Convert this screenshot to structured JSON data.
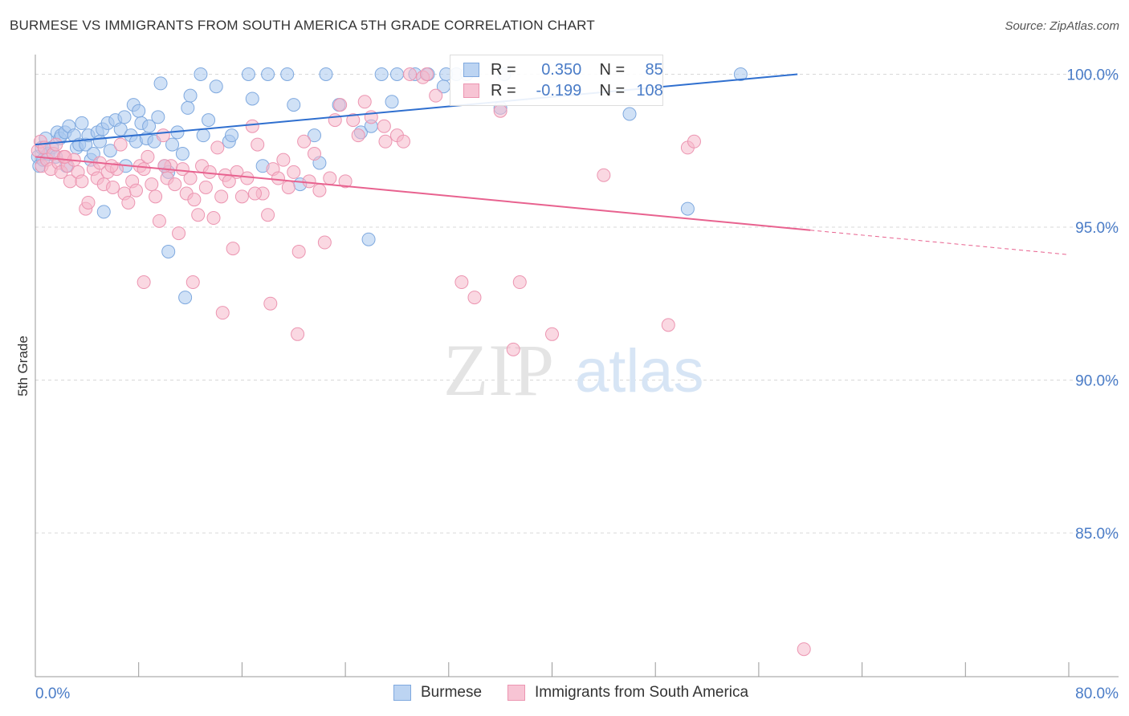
{
  "title": "BURMESE VS IMMIGRANTS FROM SOUTH AMERICA 5TH GRADE CORRELATION CHART",
  "source": "Source: ZipAtlas.com",
  "watermark": {
    "zip": "ZIP",
    "atlas": "atlas"
  },
  "legend": {
    "rows": [
      {
        "r_label": "R =",
        "r_value": "0.350",
        "n_label": "N =",
        "n_value": "85"
      },
      {
        "r_label": "R =",
        "r_value": "-0.199",
        "n_label": "N =",
        "n_value": "108"
      }
    ]
  },
  "bottom_legend": {
    "series1": "Burmese",
    "series2": "Immigrants from South America"
  },
  "colors": {
    "blue_fill": "#a9c8ef",
    "blue_stroke": "#7fa9df",
    "blue_line": "#2f6fcf",
    "pink_fill": "#f5b8cb",
    "pink_stroke": "#ec95b1",
    "pink_line": "#e8628f",
    "axis_text": "#4a7cc7",
    "grid": "#d8d8d8"
  },
  "chart_data": {
    "type": "scatter",
    "title": "BURMESE VS IMMIGRANTS FROM SOUTH AMERICA 5TH GRADE CORRELATION CHART",
    "xlabel": "",
    "ylabel": "5th Grade",
    "xlim": [
      0,
      80
    ],
    "ylim": [
      80.3,
      100.8
    ],
    "x_tick_labels": [
      "0.0%",
      "80.0%"
    ],
    "y_ticks": [
      85,
      90,
      95,
      100
    ],
    "y_tick_labels": [
      "85.0%",
      "90.0%",
      "95.0%",
      "100.0%"
    ],
    "grid": true,
    "legend_position": "top-center",
    "series": [
      {
        "name": "Burmese",
        "r": 0.35,
        "n": 85,
        "trend": {
          "x0": 0,
          "y0": 97.7,
          "x1": 59.0,
          "y1": 100.0,
          "dashed_to": 59.0
        },
        "points": [
          [
            0.2,
            97.3
          ],
          [
            0.3,
            97.0
          ],
          [
            0.5,
            97.6
          ],
          [
            0.6,
            97.2
          ],
          [
            0.8,
            97.9
          ],
          [
            1.0,
            97.4
          ],
          [
            1.3,
            97.6
          ],
          [
            1.6,
            97.3
          ],
          [
            1.7,
            98.1
          ],
          [
            1.9,
            97.9
          ],
          [
            2.0,
            98.0
          ],
          [
            2.3,
            98.1
          ],
          [
            2.6,
            98.3
          ],
          [
            3.0,
            98.0
          ],
          [
            3.2,
            97.6
          ],
          [
            3.4,
            97.7
          ],
          [
            3.6,
            98.4
          ],
          [
            3.9,
            97.7
          ],
          [
            4.1,
            98.0
          ],
          [
            4.3,
            97.2
          ],
          [
            4.5,
            97.4
          ],
          [
            4.8,
            98.1
          ],
          [
            5.0,
            97.8
          ],
          [
            5.2,
            98.2
          ],
          [
            5.6,
            98.4
          ],
          [
            5.8,
            97.5
          ],
          [
            6.2,
            98.5
          ],
          [
            6.6,
            98.2
          ],
          [
            6.9,
            98.6
          ],
          [
            7.0,
            97.0
          ],
          [
            7.4,
            98.0
          ],
          [
            7.6,
            99.0
          ],
          [
            7.8,
            97.8
          ],
          [
            8.0,
            98.8
          ],
          [
            8.2,
            98.4
          ],
          [
            8.6,
            97.9
          ],
          [
            8.8,
            98.3
          ],
          [
            9.2,
            97.8
          ],
          [
            9.5,
            98.6
          ],
          [
            9.7,
            99.7
          ],
          [
            10.0,
            97.0
          ],
          [
            10.3,
            96.8
          ],
          [
            10.6,
            97.7
          ],
          [
            11.0,
            98.1
          ],
          [
            11.4,
            97.4
          ],
          [
            11.8,
            98.9
          ],
          [
            12.0,
            99.3
          ],
          [
            12.8,
            100.0
          ],
          [
            13.0,
            98.0
          ],
          [
            13.4,
            98.5
          ],
          [
            14.0,
            99.6
          ],
          [
            15.0,
            97.8
          ],
          [
            15.2,
            98.0
          ],
          [
            16.5,
            100.0
          ],
          [
            16.8,
            99.2
          ],
          [
            17.6,
            97.0
          ],
          [
            18.0,
            100.0
          ],
          [
            19.5,
            100.0
          ],
          [
            20.0,
            99.0
          ],
          [
            20.5,
            96.4
          ],
          [
            21.6,
            98.0
          ],
          [
            22.0,
            97.1
          ],
          [
            22.5,
            100.0
          ],
          [
            23.5,
            99.0
          ],
          [
            25.2,
            98.1
          ],
          [
            26.0,
            98.3
          ],
          [
            26.8,
            100.0
          ],
          [
            27.6,
            99.1
          ],
          [
            28.0,
            100.0
          ],
          [
            29.4,
            100.0
          ],
          [
            30.4,
            100.0
          ],
          [
            31.6,
            99.6
          ],
          [
            31.8,
            100.0
          ],
          [
            32.6,
            100.0
          ],
          [
            33.4,
            100.0
          ],
          [
            36.0,
            98.9
          ],
          [
            36.3,
            100.0
          ],
          [
            46.0,
            98.7
          ],
          [
            50.5,
            95.6
          ],
          [
            54.6,
            100.0
          ],
          [
            5.3,
            95.5
          ],
          [
            10.3,
            94.2
          ],
          [
            11.6,
            92.7
          ],
          [
            25.8,
            94.6
          ],
          [
            2.4,
            97.0
          ]
        ]
      },
      {
        "name": "Immigrants from South America",
        "r": -0.199,
        "n": 108,
        "trend": {
          "x0": 0,
          "y0": 97.3,
          "x1": 60.0,
          "y1": 94.9,
          "dashed_to": 80.0
        },
        "points": [
          [
            0.2,
            97.5
          ],
          [
            0.4,
            97.8
          ],
          [
            0.5,
            97.0
          ],
          [
            0.7,
            97.6
          ],
          [
            0.9,
            97.2
          ],
          [
            1.2,
            96.9
          ],
          [
            1.4,
            97.4
          ],
          [
            1.6,
            97.7
          ],
          [
            1.8,
            97.1
          ],
          [
            2.0,
            96.8
          ],
          [
            2.2,
            97.3
          ],
          [
            2.5,
            97.0
          ],
          [
            2.7,
            96.5
          ],
          [
            3.0,
            97.2
          ],
          [
            3.3,
            96.8
          ],
          [
            3.6,
            96.5
          ],
          [
            3.9,
            95.6
          ],
          [
            4.1,
            95.8
          ],
          [
            4.5,
            96.9
          ],
          [
            4.8,
            96.6
          ],
          [
            5.0,
            97.1
          ],
          [
            5.3,
            96.4
          ],
          [
            5.6,
            96.8
          ],
          [
            6.0,
            96.3
          ],
          [
            6.3,
            96.9
          ],
          [
            6.6,
            97.7
          ],
          [
            6.9,
            96.1
          ],
          [
            7.2,
            95.8
          ],
          [
            7.5,
            96.5
          ],
          [
            7.8,
            96.2
          ],
          [
            8.1,
            97.0
          ],
          [
            8.4,
            96.9
          ],
          [
            8.7,
            97.3
          ],
          [
            9.0,
            96.4
          ],
          [
            9.3,
            96.0
          ],
          [
            9.6,
            95.2
          ],
          [
            9.9,
            98.0
          ],
          [
            10.2,
            96.6
          ],
          [
            10.5,
            97.0
          ],
          [
            10.8,
            96.4
          ],
          [
            11.1,
            94.8
          ],
          [
            11.4,
            96.9
          ],
          [
            11.7,
            96.1
          ],
          [
            12.0,
            96.6
          ],
          [
            12.3,
            95.9
          ],
          [
            12.6,
            95.4
          ],
          [
            12.9,
            97.0
          ],
          [
            13.2,
            96.3
          ],
          [
            13.5,
            96.8
          ],
          [
            13.8,
            95.3
          ],
          [
            14.1,
            97.6
          ],
          [
            14.4,
            96.0
          ],
          [
            14.7,
            96.7
          ],
          [
            15.0,
            96.5
          ],
          [
            15.3,
            94.3
          ],
          [
            15.6,
            96.8
          ],
          [
            16.0,
            96.0
          ],
          [
            16.4,
            96.6
          ],
          [
            16.8,
            98.3
          ],
          [
            17.2,
            97.7
          ],
          [
            17.6,
            96.1
          ],
          [
            18.0,
            95.4
          ],
          [
            18.4,
            96.9
          ],
          [
            18.8,
            96.6
          ],
          [
            19.2,
            97.2
          ],
          [
            19.6,
            96.3
          ],
          [
            20.0,
            96.8
          ],
          [
            20.4,
            94.2
          ],
          [
            20.8,
            97.8
          ],
          [
            21.2,
            96.5
          ],
          [
            21.6,
            97.4
          ],
          [
            22.0,
            96.2
          ],
          [
            22.4,
            94.5
          ],
          [
            22.8,
            96.6
          ],
          [
            23.2,
            98.5
          ],
          [
            23.6,
            99.0
          ],
          [
            24.0,
            96.5
          ],
          [
            24.6,
            98.5
          ],
          [
            25.0,
            98.0
          ],
          [
            25.5,
            99.1
          ],
          [
            26.0,
            98.6
          ],
          [
            27.0,
            98.3
          ],
          [
            28.0,
            98.0
          ],
          [
            28.5,
            97.8
          ],
          [
            29.0,
            100.0
          ],
          [
            30.0,
            99.9
          ],
          [
            31.0,
            99.3
          ],
          [
            33.0,
            93.2
          ],
          [
            34.0,
            92.7
          ],
          [
            36.0,
            98.8
          ],
          [
            37.0,
            91.0
          ],
          [
            37.5,
            93.2
          ],
          [
            40.0,
            91.5
          ],
          [
            44.0,
            96.7
          ],
          [
            49.0,
            91.8
          ],
          [
            50.5,
            97.6
          ],
          [
            51.0,
            97.8
          ],
          [
            59.5,
            81.2
          ],
          [
            14.5,
            92.2
          ],
          [
            18.2,
            92.5
          ],
          [
            20.3,
            91.5
          ],
          [
            12.2,
            93.2
          ],
          [
            8.4,
            93.2
          ],
          [
            27.1,
            97.8
          ],
          [
            2.3,
            97.3
          ],
          [
            5.9,
            97.0
          ],
          [
            30.3,
            100.0
          ],
          [
            10.0,
            97.0
          ],
          [
            17.0,
            96.1
          ]
        ]
      }
    ]
  }
}
